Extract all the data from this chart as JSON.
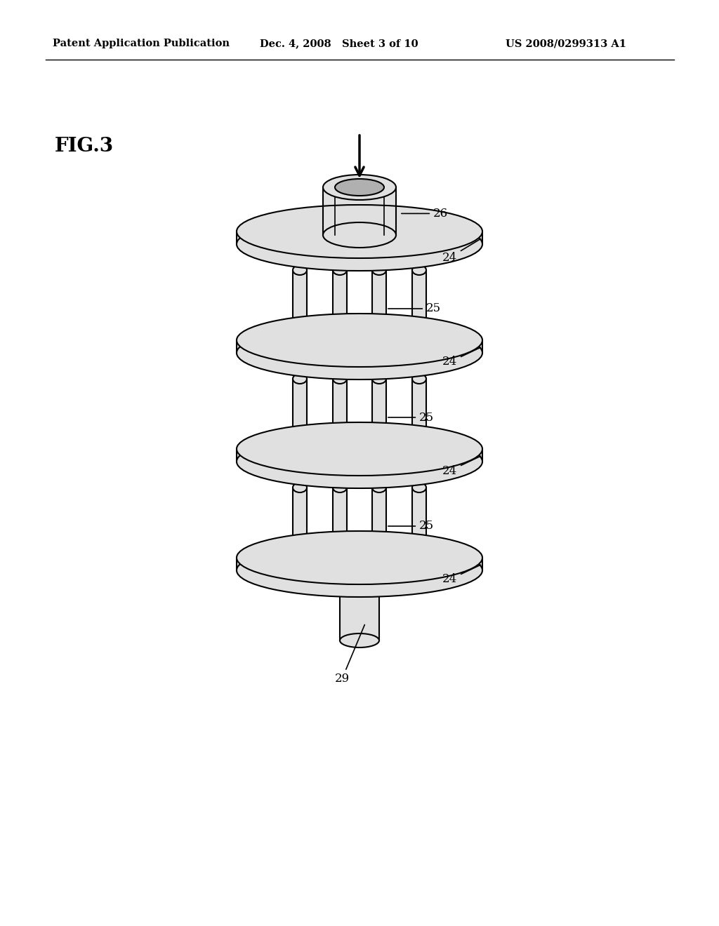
{
  "header_left": "Patent Application Publication",
  "header_mid": "Dec. 4, 2008   Sheet 3 of 10",
  "header_right": "US 2008/0299313 A1",
  "fig_label": "FIG.3",
  "background": "#ffffff",
  "line_color": "#000000",
  "fill_color": "#e0e0e0",
  "fill_dark": "#c8c8c8",
  "fill_inner": "#b0b0b0"
}
